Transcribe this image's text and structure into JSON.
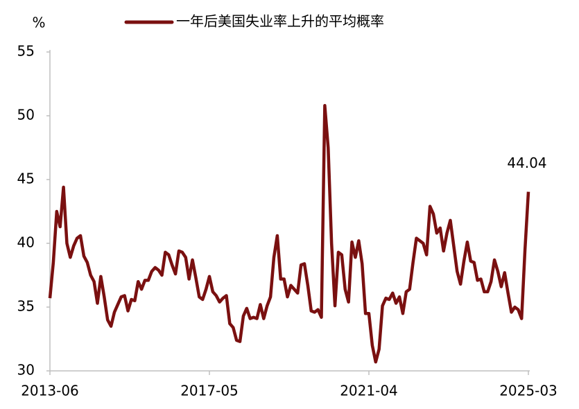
{
  "chart_data": {
    "type": "line",
    "y_label": "%",
    "x": [
      "2013-06",
      "2013-07",
      "2013-08",
      "2013-09",
      "2013-10",
      "2013-11",
      "2013-12",
      "2014-01",
      "2014-02",
      "2014-03",
      "2014-04",
      "2014-05",
      "2014-06",
      "2014-07",
      "2014-08",
      "2014-09",
      "2014-10",
      "2014-11",
      "2014-12",
      "2015-01",
      "2015-02",
      "2015-03",
      "2015-04",
      "2015-05",
      "2015-06",
      "2015-07",
      "2015-08",
      "2015-09",
      "2015-10",
      "2015-11",
      "2015-12",
      "2016-01",
      "2016-02",
      "2016-03",
      "2016-04",
      "2016-05",
      "2016-06",
      "2016-07",
      "2016-08",
      "2016-09",
      "2016-10",
      "2016-11",
      "2016-12",
      "2017-01",
      "2017-02",
      "2017-03",
      "2017-04",
      "2017-05",
      "2017-06",
      "2017-07",
      "2017-08",
      "2017-09",
      "2017-10",
      "2017-11",
      "2017-12",
      "2018-01",
      "2018-02",
      "2018-03",
      "2018-04",
      "2018-05",
      "2018-06",
      "2018-07",
      "2018-08",
      "2018-09",
      "2018-10",
      "2018-11",
      "2018-12",
      "2019-01",
      "2019-02",
      "2019-03",
      "2019-04",
      "2019-05",
      "2019-06",
      "2019-07",
      "2019-08",
      "2019-09",
      "2019-10",
      "2019-11",
      "2019-12",
      "2020-01",
      "2020-02",
      "2020-03",
      "2020-04",
      "2020-05",
      "2020-06",
      "2020-07",
      "2020-08",
      "2020-09",
      "2020-10",
      "2020-11",
      "2020-12",
      "2021-01",
      "2021-02",
      "2021-03",
      "2021-04",
      "2021-05",
      "2021-06",
      "2021-07",
      "2021-08",
      "2021-09",
      "2021-10",
      "2021-11",
      "2021-12",
      "2022-01",
      "2022-02",
      "2022-03",
      "2022-04",
      "2022-05",
      "2022-06",
      "2022-07",
      "2022-08",
      "2022-09",
      "2022-10",
      "2022-11",
      "2022-12",
      "2023-01",
      "2023-02",
      "2023-03",
      "2023-04",
      "2023-05",
      "2023-06",
      "2023-07",
      "2023-08",
      "2023-09",
      "2023-10",
      "2023-11",
      "2023-12",
      "2024-01",
      "2024-02",
      "2024-03",
      "2024-04",
      "2024-05",
      "2024-06",
      "2024-07",
      "2024-08",
      "2024-09",
      "2024-10",
      "2024-11",
      "2024-12",
      "2025-01",
      "2025-02",
      "2025-03"
    ],
    "series": [
      {
        "name": "一年后美国失业率上升的平均概率",
        "color": "#7a1010",
        "values": [
          35.7,
          38.5,
          42.5,
          41.3,
          44.4,
          40,
          38.9,
          39.8,
          40.4,
          40.6,
          39,
          38.5,
          37.5,
          37,
          35.3,
          37.4,
          35.8,
          34,
          33.5,
          34.6,
          35.2,
          35.8,
          35.9,
          34.7,
          35.6,
          35.5,
          37,
          36.4,
          37.1,
          37.1,
          37.8,
          38.1,
          37.9,
          37.5,
          39.3,
          39.1,
          38.3,
          37.6,
          39.4,
          39.3,
          38.9,
          37.2,
          38.7,
          37.3,
          35.8,
          35.6,
          36.4,
          37.4,
          36.2,
          35.9,
          35.4,
          35.7,
          35.9,
          33.7,
          33.4,
          32.4,
          32.3,
          34.3,
          34.9,
          34.1,
          34.2,
          34.1,
          35.2,
          34.1,
          35.1,
          35.8,
          38.9,
          40.6,
          37.2,
          37.2,
          35.8,
          36.7,
          36.4,
          36.1,
          38.3,
          38.4,
          36.7,
          34.7,
          34.6,
          34.8,
          34.2,
          50.8,
          47.5,
          40,
          35.1,
          39.3,
          39.1,
          36.4,
          35.4,
          40.1,
          38.9,
          40.2,
          38.4,
          34.5,
          34.5,
          32,
          30.7,
          31.7,
          35.1,
          35.7,
          35.6,
          36.1,
          35.3,
          35.8,
          34.5,
          36.2,
          36.4,
          38.5,
          40.4,
          40.2,
          40,
          39.1,
          42.9,
          42.3,
          40.8,
          41.2,
          39.4,
          40.8,
          41.8,
          39.8,
          37.8,
          36.8,
          38.6,
          40.1,
          38.6,
          38.5,
          37.1,
          37.2,
          36.2,
          36.2,
          37,
          38.7,
          37.8,
          36.6,
          37.7,
          36.1,
          34.6,
          35,
          34.8,
          34.1,
          39.5,
          44.04
        ]
      }
    ],
    "labeled_points": [
      141
    ],
    "xticks": [
      "2013-06",
      "2017-05",
      "2021-04",
      "2025-03"
    ],
    "ylim": [
      30,
      55
    ],
    "yticks": [
      30,
      35,
      40,
      45,
      50,
      55
    ],
    "grid": false,
    "legend": "top"
  }
}
